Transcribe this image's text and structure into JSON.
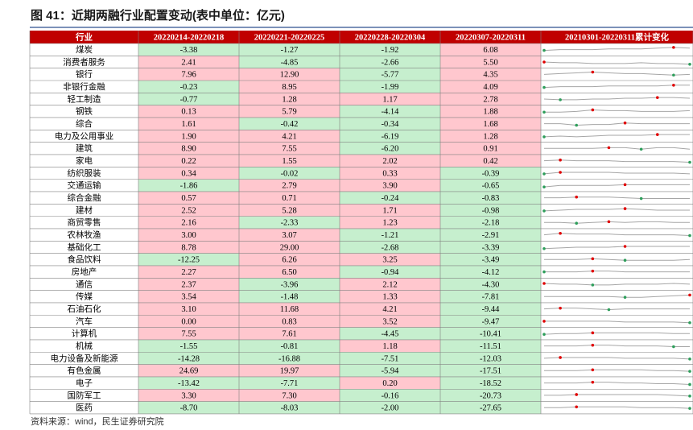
{
  "header": {
    "title": "图 41：近期两融行业配置变动(表中单位：亿元)"
  },
  "table": {
    "columns": [
      "行业",
      "20220214-20220218",
      "20220221-20220225",
      "20220228-20220304",
      "20220307-20220311",
      "20210301-20220311累计变化"
    ],
    "rows": [
      [
        "煤炭",
        "-3.38",
        "-1.27",
        "-1.92",
        "6.08"
      ],
      [
        "消费者服务",
        "2.41",
        "-4.85",
        "-2.66",
        "5.50"
      ],
      [
        "银行",
        "7.96",
        "12.90",
        "-5.77",
        "4.35"
      ],
      [
        "非银行金融",
        "-0.23",
        "8.95",
        "-1.99",
        "4.09"
      ],
      [
        "轻工制造",
        "-0.77",
        "1.28",
        "1.17",
        "2.78"
      ],
      [
        "钢铁",
        "0.13",
        "5.79",
        "-4.14",
        "1.88"
      ],
      [
        "综合",
        "1.61",
        "-0.42",
        "-0.34",
        "1.68"
      ],
      [
        "电力及公用事业",
        "1.90",
        "4.21",
        "-6.19",
        "1.28"
      ],
      [
        "建筑",
        "8.90",
        "7.55",
        "-6.20",
        "0.91"
      ],
      [
        "家电",
        "0.22",
        "1.55",
        "2.02",
        "0.42"
      ],
      [
        "纺织服装",
        "0.34",
        "-0.02",
        "0.33",
        "-0.39"
      ],
      [
        "交通运输",
        "-1.86",
        "2.79",
        "3.90",
        "-0.65"
      ],
      [
        "综合金融",
        "0.57",
        "0.71",
        "-0.24",
        "-0.83"
      ],
      [
        "建材",
        "2.52",
        "5.28",
        "1.71",
        "-0.98"
      ],
      [
        "商贸零售",
        "2.16",
        "-2.33",
        "1.23",
        "-2.18"
      ],
      [
        "农林牧渔",
        "3.00",
        "3.07",
        "-1.21",
        "-2.91"
      ],
      [
        "基础化工",
        "8.78",
        "29.00",
        "-2.68",
        "-3.39"
      ],
      [
        "食品饮料",
        "-12.25",
        "6.26",
        "3.25",
        "-3.49"
      ],
      [
        "房地产",
        "2.27",
        "6.50",
        "-0.94",
        "-4.12"
      ],
      [
        "通信",
        "2.37",
        "-3.96",
        "2.12",
        "-4.30"
      ],
      [
        "传媒",
        "3.54",
        "-1.48",
        "1.33",
        "-7.81"
      ],
      [
        "石油石化",
        "3.10",
        "11.68",
        "4.21",
        "-9.44"
      ],
      [
        "汽车",
        "0.00",
        "0.83",
        "3.52",
        "-9.47"
      ],
      [
        "计算机",
        "7.55",
        "7.61",
        "-4.45",
        "-10.41"
      ],
      [
        "机械",
        "-1.55",
        "-0.81",
        "1.18",
        "-11.51"
      ],
      [
        "电力设备及新能源",
        "-14.28",
        "-16.88",
        "-7.51",
        "-12.03"
      ],
      [
        "有色金属",
        "24.69",
        "19.97",
        "-5.94",
        "-17.51"
      ],
      [
        "电子",
        "-13.42",
        "-7.71",
        "0.20",
        "-18.52"
      ],
      [
        "国防军工",
        "3.30",
        "7.30",
        "-0.16",
        "-20.73"
      ],
      [
        "医药",
        "-8.70",
        "-8.03",
        "-2.00",
        "-27.65"
      ]
    ],
    "trends": [
      [
        4,
        5,
        5,
        5,
        6,
        6,
        6,
        7,
        8,
        7
      ],
      [
        5,
        4,
        4,
        3,
        3,
        3,
        4,
        3,
        3,
        2
      ],
      [
        5,
        6,
        7,
        8,
        7,
        6,
        6,
        5,
        4,
        5
      ],
      [
        4,
        5,
        5,
        5,
        6,
        6,
        6,
        6,
        7,
        7
      ],
      [
        5,
        4,
        4,
        5,
        5,
        6,
        6,
        7,
        7,
        6
      ],
      [
        4,
        4,
        5,
        7,
        6,
        6,
        5,
        5,
        5,
        6
      ],
      [
        5,
        5,
        3,
        4,
        4,
        6,
        5,
        5,
        5,
        5
      ],
      [
        4,
        5,
        4,
        5,
        6,
        6,
        6,
        7,
        7,
        7
      ],
      [
        5,
        5,
        5,
        5,
        6,
        6,
        4,
        6,
        6,
        4
      ],
      [
        5,
        6,
        5,
        5,
        5,
        4,
        4,
        4,
        4,
        3
      ],
      [
        4,
        6,
        6,
        6,
        6,
        5,
        5,
        5,
        5,
        4
      ],
      [
        3,
        5,
        5,
        5,
        5,
        6,
        6,
        6,
        6,
        6
      ],
      [
        5,
        5,
        6,
        6,
        6,
        5,
        4,
        4,
        4,
        4
      ],
      [
        4,
        5,
        6,
        6,
        6,
        7,
        6,
        5,
        5,
        5
      ],
      [
        5,
        5,
        4,
        5,
        6,
        5,
        6,
        6,
        5,
        5
      ],
      [
        5,
        7,
        6,
        6,
        6,
        5,
        5,
        5,
        5,
        4
      ],
      [
        3,
        4,
        5,
        5,
        5,
        6,
        6,
        6,
        6,
        6
      ],
      [
        5,
        5,
        5,
        6,
        5,
        4,
        4,
        4,
        4,
        5
      ],
      [
        5,
        5,
        5,
        6,
        6,
        5,
        5,
        5,
        5,
        5
      ],
      [
        6,
        5,
        5,
        4,
        4,
        5,
        5,
        5,
        6,
        5
      ],
      [
        5,
        5,
        5,
        5,
        5,
        4,
        4,
        5,
        6,
        7
      ],
      [
        5,
        6,
        6,
        5,
        4,
        5,
        5,
        5,
        5,
        5
      ],
      [
        5,
        5,
        5,
        5,
        5,
        4,
        4,
        4,
        4,
        3
      ],
      [
        4,
        5,
        5,
        6,
        6,
        6,
        6,
        6,
        5,
        5
      ],
      [
        5,
        5,
        5,
        6,
        6,
        5,
        5,
        5,
        4,
        4
      ],
      [
        5,
        6,
        6,
        6,
        6,
        5,
        5,
        5,
        5,
        4
      ],
      [
        5,
        5,
        5,
        6,
        6,
        6,
        6,
        5,
        5,
        4
      ],
      [
        5,
        5,
        5,
        6,
        6,
        5,
        5,
        4,
        4,
        3
      ],
      [
        5,
        5,
        6,
        6,
        6,
        6,
        6,
        6,
        5,
        4
      ],
      [
        5,
        5,
        6,
        6,
        6,
        6,
        5,
        5,
        5,
        4
      ]
    ]
  },
  "source": "资料来源：wind，民生证券研究院"
}
